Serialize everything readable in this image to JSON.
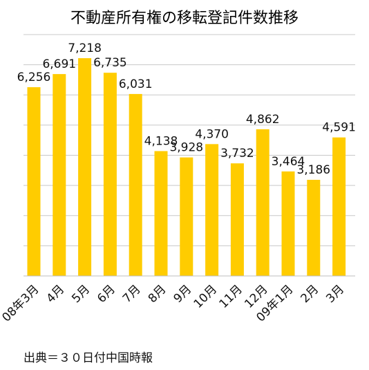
{
  "chart_data": {
    "type": "bar",
    "title": "不動産所有権の移転登記件数推移",
    "categories": [
      "08年3月",
      "4月",
      "5月",
      "6月",
      "7月",
      "8月",
      "9月",
      "10月",
      "11月",
      "12月",
      "09年1月",
      "2月",
      "3月"
    ],
    "values": [
      6256,
      6691,
      7218,
      6735,
      6031,
      4138,
      3928,
      4370,
      3732,
      4862,
      3464,
      3186,
      4591
    ],
    "value_labels": [
      "6,256",
      "6,691",
      "7,218",
      "6,735",
      "6,031",
      "4,138",
      "3,928",
      "4,370",
      "3,732",
      "4,862",
      "3,464",
      "3,186",
      "4,591"
    ],
    "xlabel": "",
    "ylabel": "",
    "ylim": [
      0,
      8000
    ],
    "grid": true,
    "bar_color": "#FFCC00",
    "grid_color": "#C8C8C8",
    "source": "出典＝３０日付中国時報"
  }
}
